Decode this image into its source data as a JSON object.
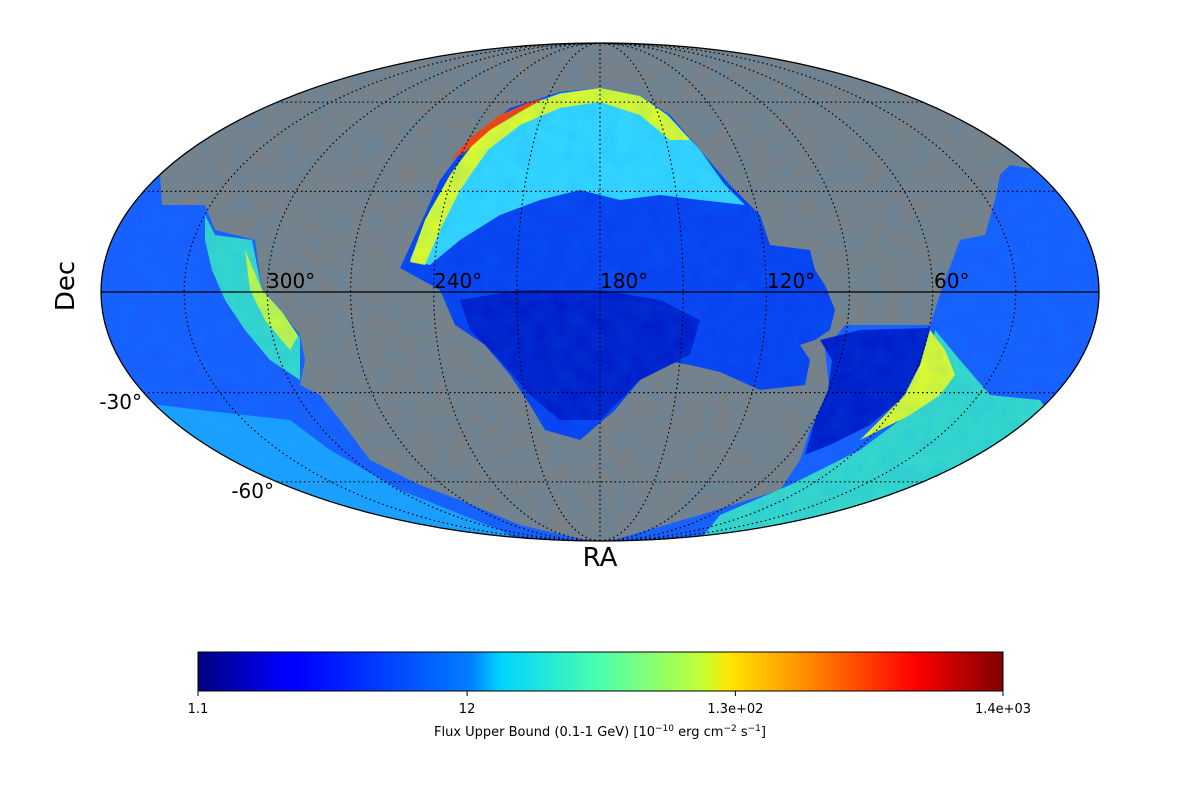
{
  "chart_data": {
    "type": "heatmap",
    "projection": "mollweide",
    "xlabel": "RA",
    "ylabel": "Dec",
    "ra_tick_labels": [
      "300°",
      "240°",
      "180°",
      "120°",
      "60°"
    ],
    "dec_tick_labels": [
      "-30°",
      "-60°"
    ],
    "colorbar": {
      "colormap": "jet",
      "scale": "log",
      "tick_labels": [
        "1.1",
        "12",
        "1.3e+02",
        "1.4e+03"
      ],
      "tick_values": [
        1.1,
        12,
        130,
        1400
      ],
      "range": [
        1.1,
        1400
      ],
      "label_prefix": "Flux Upper Bound (0.1-1 GeV) [10",
      "label_exp1": "−10",
      "label_mid1": " erg cm",
      "label_exp2": "−2",
      "label_mid2": " s",
      "label_exp3": "−1",
      "label_suffix": "]"
    },
    "masked_color": "#808080",
    "grid": true
  }
}
